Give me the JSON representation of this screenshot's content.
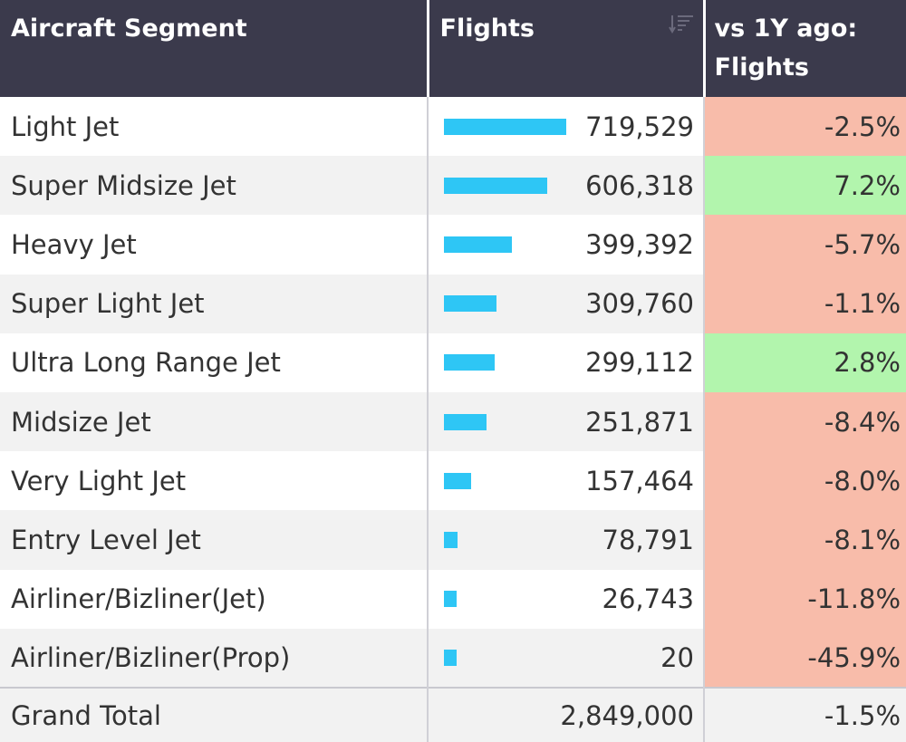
{
  "table": {
    "headers": {
      "segment": "Aircraft Segment",
      "flights": "Flights",
      "change": "vs 1Y ago: Flights"
    },
    "rows": [
      {
        "segment": "Light Jet",
        "flights": "719,529",
        "flights_value": 719529,
        "change": "-2.5%",
        "direction": "neg"
      },
      {
        "segment": "Super Midsize Jet",
        "flights": "606,318",
        "flights_value": 606318,
        "change": "7.2%",
        "direction": "pos"
      },
      {
        "segment": "Heavy Jet",
        "flights": "399,392",
        "flights_value": 399392,
        "change": "-5.7%",
        "direction": "neg"
      },
      {
        "segment": "Super Light Jet",
        "flights": "309,760",
        "flights_value": 309760,
        "change": "-1.1%",
        "direction": "neg"
      },
      {
        "segment": "Ultra Long Range Jet",
        "flights": "299,112",
        "flights_value": 299112,
        "change": "2.8%",
        "direction": "pos"
      },
      {
        "segment": "Midsize Jet",
        "flights": "251,871",
        "flights_value": 251871,
        "change": "-8.4%",
        "direction": "neg"
      },
      {
        "segment": "Very Light Jet",
        "flights": "157,464",
        "flights_value": 157464,
        "change": "-8.0%",
        "direction": "neg"
      },
      {
        "segment": "Entry Level Jet",
        "flights": "78,791",
        "flights_value": 78791,
        "change": "-8.1%",
        "direction": "neg"
      },
      {
        "segment": "Airliner/Bizliner(Jet)",
        "flights": "26,743",
        "flights_value": 26743,
        "change": "-11.8%",
        "direction": "neg"
      },
      {
        "segment": "Airliner/Bizliner(Prop)",
        "flights": "20",
        "flights_value": 20,
        "change": "-45.9%",
        "direction": "neg"
      }
    ],
    "total": {
      "label": "Grand Total",
      "flights": "2,849,000",
      "change": "-1.5%"
    }
  },
  "colors": {
    "header_bg": "#3b3a4c",
    "bar": "#2ec6f5",
    "negative_bg": "#f8bcaa",
    "positive_bg": "#b2f5ad"
  },
  "icons": {
    "flights_header": "sort-descending-icon"
  }
}
